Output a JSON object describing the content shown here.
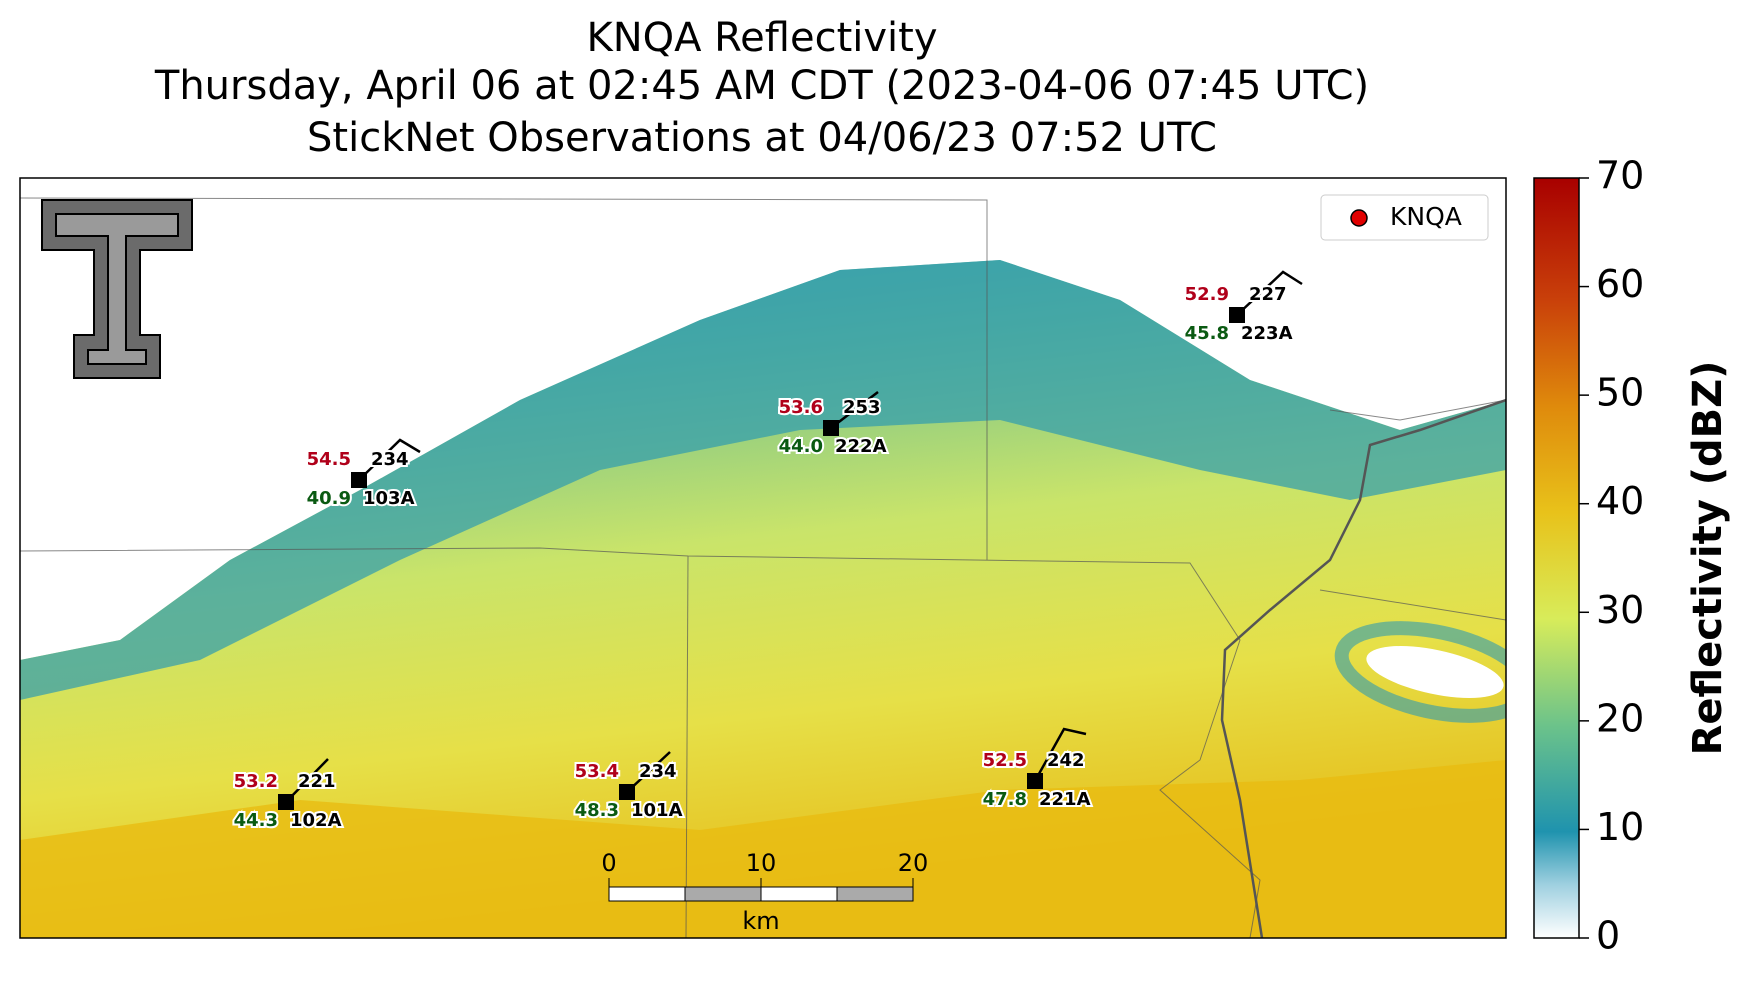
{
  "title": [
    "KNQA Reflectivity",
    "Thursday, April 06 at 02:45 AM CDT (2023-04-06 07:45 UTC)",
    "StickNet Observations at 04/06/23 07:52 UTC"
  ],
  "legend": "KNQA",
  "stations": [
    {
      "id": "103A",
      "temp": "54.5",
      "dewpoint": "40.9",
      "value": "234"
    },
    {
      "id": "222A",
      "temp": "53.6",
      "dewpoint": "44.0",
      "value": "253"
    },
    {
      "id": "223A",
      "temp": "52.9",
      "dewpoint": "45.8",
      "value": "227"
    },
    {
      "id": "102A",
      "temp": "53.2",
      "dewpoint": "44.3",
      "value": "221"
    },
    {
      "id": "101A",
      "temp": "53.4",
      "dewpoint": "48.3",
      "value": "234"
    },
    {
      "id": "221A",
      "temp": "52.5",
      "dewpoint": "47.8",
      "value": "242"
    }
  ],
  "scalebar": {
    "ticks": [
      0,
      10,
      20
    ],
    "unit": "km"
  },
  "colorbar": {
    "label": "Reflectivity (dBZ)",
    "lim": [
      0,
      70
    ],
    "ticks": [
      0,
      10,
      20,
      30,
      40,
      50,
      60,
      70
    ]
  }
}
